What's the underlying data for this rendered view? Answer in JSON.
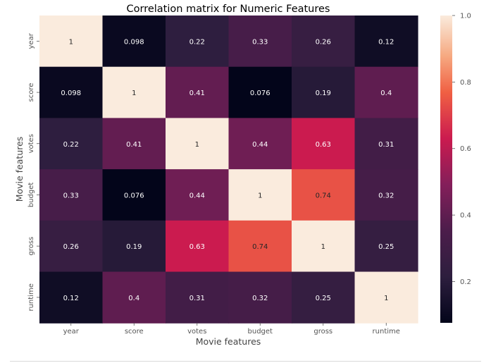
{
  "chart_data": {
    "type": "heatmap",
    "title": "Correlation matrix for Numeric Features",
    "xlabel": "Movie features",
    "ylabel": "Movie features",
    "x_categories": [
      "year",
      "score",
      "votes",
      "budget",
      "gross",
      "runtime"
    ],
    "y_categories": [
      "year",
      "score",
      "votes",
      "budget",
      "gross",
      "runtime"
    ],
    "values": [
      [
        1,
        0.098,
        0.22,
        0.33,
        0.26,
        0.12
      ],
      [
        0.098,
        1,
        0.41,
        0.076,
        0.19,
        0.4
      ],
      [
        0.22,
        0.41,
        1,
        0.44,
        0.63,
        0.31
      ],
      [
        0.33,
        0.076,
        0.44,
        1,
        0.74,
        0.32
      ],
      [
        0.26,
        0.19,
        0.63,
        0.74,
        1,
        0.25
      ],
      [
        0.12,
        0.4,
        0.31,
        0.32,
        0.25,
        1
      ]
    ],
    "colorbar": {
      "range": [
        0.076,
        1.0
      ],
      "ticks": [
        0.2,
        0.4,
        0.6,
        0.8,
        1.0
      ],
      "tick_labels": [
        "0.2",
        "0.4",
        "0.6",
        "0.8",
        "1.0"
      ]
    },
    "colormap": "rocket",
    "grid": false
  }
}
